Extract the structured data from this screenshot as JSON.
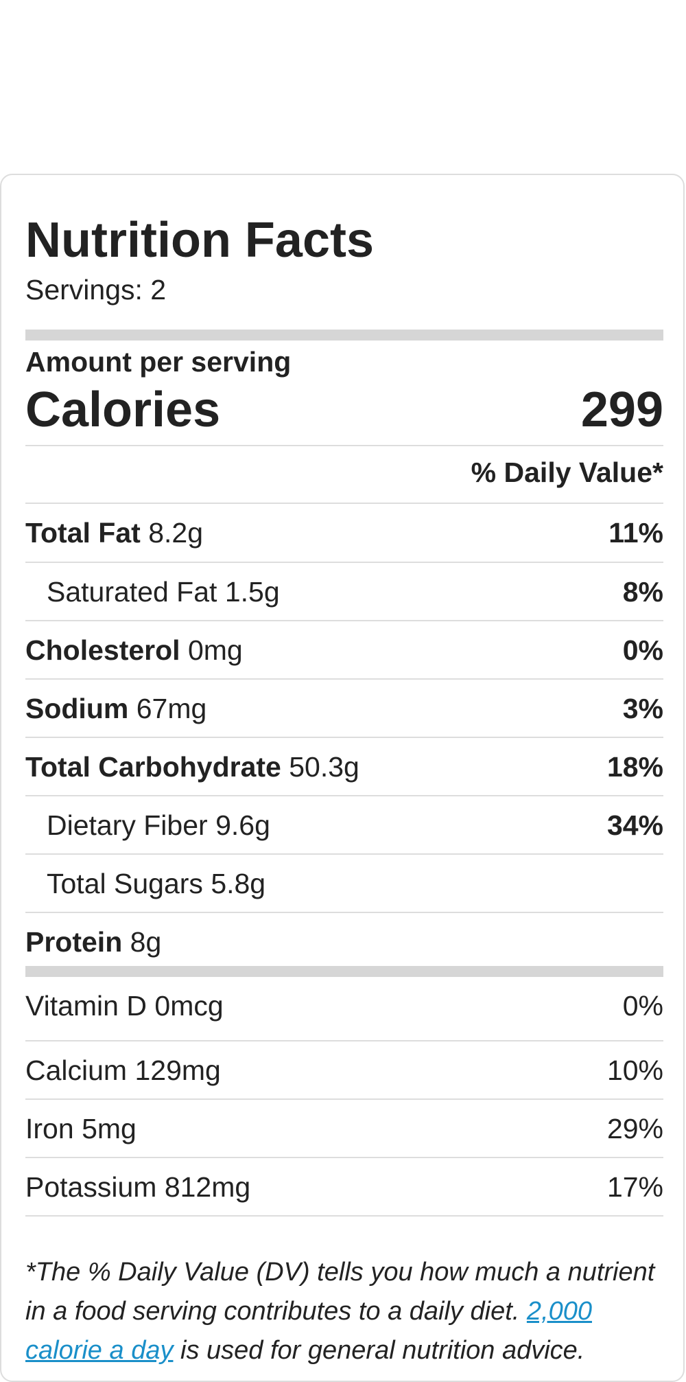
{
  "label": {
    "title": "Nutrition Facts",
    "servings": "Servings: 2",
    "amount_per_serving": "Amount per serving",
    "calories_label": "Calories",
    "calories_value": "299",
    "dv_header": "% Daily Value*"
  },
  "nutrients": [
    {
      "name": "Total Fat",
      "amount": "8.2g",
      "pct": "11%"
    },
    {
      "name": "Saturated Fat",
      "amount": "1.5g",
      "pct": "8%"
    },
    {
      "name": "Cholesterol",
      "amount": "0mg",
      "pct": "0%"
    },
    {
      "name": "Sodium",
      "amount": "67mg",
      "pct": "3%"
    },
    {
      "name": "Total Carbohydrate",
      "amount": "50.3g",
      "pct": "18%"
    },
    {
      "name": "Dietary Fiber",
      "amount": "9.6g",
      "pct": "34%"
    },
    {
      "name": "Total Sugars",
      "amount": "5.8g"
    },
    {
      "name": "Protein",
      "amount": "8g"
    }
  ],
  "vitamins": [
    {
      "name": "Vitamin D",
      "amount": "0mcg",
      "pct": "0%"
    },
    {
      "name": "Calcium",
      "amount": "129mg",
      "pct": "10%"
    },
    {
      "name": "Iron",
      "amount": "5mg",
      "pct": "29%"
    },
    {
      "name": "Potassium",
      "amount": "812mg",
      "pct": "17%"
    }
  ],
  "footnote": {
    "line1": "*The % Daily Value (DV) tells you how much a nutrient in a food serving contributes to a daily diet.",
    "link_text": "2,000 calorie a day",
    "line2": " is used for general nutrition advice."
  }
}
